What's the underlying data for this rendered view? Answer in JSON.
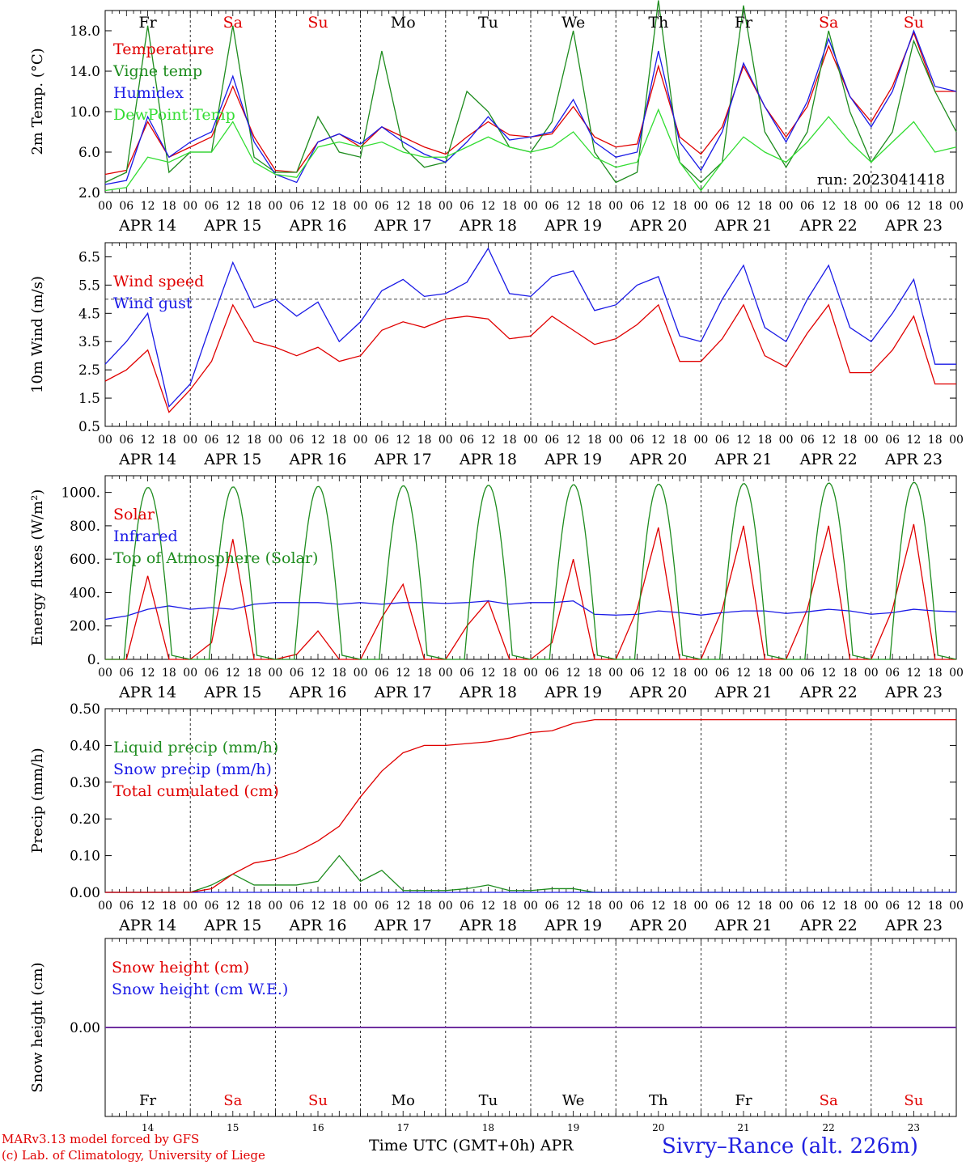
{
  "run_label": "run: 2023041418",
  "hour_ticks": [
    "00",
    "06",
    "12",
    "18"
  ],
  "days": [
    {
      "date": "APR 14",
      "weekday": "Fr",
      "weekend": false,
      "num": "14"
    },
    {
      "date": "APR 15",
      "weekday": "Sa",
      "weekend": true,
      "num": "15"
    },
    {
      "date": "APR 16",
      "weekday": "Su",
      "weekend": true,
      "num": "16"
    },
    {
      "date": "APR 17",
      "weekday": "Mo",
      "weekend": false,
      "num": "17"
    },
    {
      "date": "APR 18",
      "weekday": "Tu",
      "weekend": false,
      "num": "18"
    },
    {
      "date": "APR 19",
      "weekday": "We",
      "weekend": false,
      "num": "19"
    },
    {
      "date": "APR 20",
      "weekday": "Th",
      "weekend": false,
      "num": "20"
    },
    {
      "date": "APR 21",
      "weekday": "Fr",
      "weekend": false,
      "num": "21"
    },
    {
      "date": "APR 22",
      "weekday": "Sa",
      "weekend": true,
      "num": "22"
    },
    {
      "date": "APR 23",
      "weekday": "Su",
      "weekend": true,
      "num": "23"
    }
  ],
  "colors": {
    "red": "#e00000",
    "green": "#1e8c1e",
    "blue": "#1a1ae6",
    "lightgreen": "#33dd33",
    "purple": "#7030a0",
    "weekday": "#000000",
    "weekend": "#e00000"
  },
  "chart_data": [
    {
      "type": "line",
      "ylabel": "2m Temp. (°C)",
      "ylim": [
        2,
        20
      ],
      "yticks": [
        "2.0",
        "6.0",
        "10.0",
        "14.0",
        "18.0"
      ],
      "x_hours": [
        0,
        6,
        12,
        18,
        24,
        30,
        36,
        42,
        48,
        54,
        60,
        66,
        72,
        78,
        84,
        90,
        96,
        102,
        108,
        114,
        120,
        126,
        132,
        138,
        144,
        150,
        156,
        162,
        168,
        174,
        180,
        186,
        192,
        198,
        204,
        210,
        216,
        222,
        228,
        234,
        240
      ],
      "series": [
        {
          "name": "Temperature",
          "color": "#e00000",
          "values": [
            3.8,
            4.2,
            9,
            5.5,
            6.5,
            7.5,
            12.5,
            7.5,
            4.2,
            4.0,
            7.0,
            7.8,
            6.5,
            8.5,
            7.5,
            6.5,
            5.8,
            7.5,
            9.0,
            7.7,
            7.5,
            7.8,
            10.5,
            7.5,
            6.5,
            6.8,
            14.5,
            7.5,
            5.8,
            8.5,
            14.5,
            10.5,
            7.5,
            10.5,
            16.5,
            11.5,
            9.0,
            12.5,
            17.8,
            12.0,
            12.0
          ]
        },
        {
          "name": "Vigne temp",
          "color": "#1e8c1e",
          "values": [
            3.0,
            4.0,
            18.5,
            4.0,
            6.0,
            6.0,
            18.5,
            5.5,
            4.0,
            4.0,
            9.5,
            6.0,
            5.5,
            16.0,
            6.5,
            4.5,
            5.0,
            12.0,
            10.0,
            6.5,
            6.0,
            9.0,
            18.0,
            6.0,
            3.0,
            4.0,
            21.0,
            5.0,
            3.0,
            5.0,
            20.5,
            8.0,
            4.5,
            8.0,
            18.0,
            10.0,
            5.0,
            8.0,
            17.0,
            12.0,
            8.0
          ]
        },
        {
          "name": "Humidex",
          "color": "#1a1ae6",
          "values": [
            2.8,
            3.2,
            9.5,
            5.5,
            7.0,
            8.0,
            13.5,
            7.0,
            3.8,
            3.0,
            7.0,
            7.8,
            6.8,
            8.5,
            7.0,
            5.8,
            5.0,
            7.0,
            9.5,
            7.2,
            7.5,
            8.0,
            11.2,
            7.0,
            5.5,
            6.0,
            16.0,
            7.0,
            4.2,
            8.0,
            14.8,
            10.5,
            7.0,
            11.0,
            17.2,
            11.5,
            8.5,
            12.0,
            18.0,
            12.5,
            12.0
          ]
        },
        {
          "name": "DewPoint Temp",
          "color": "#33dd33",
          "values": [
            2.2,
            2.5,
            5.5,
            5.0,
            6.0,
            6.0,
            9.0,
            5.0,
            3.8,
            3.5,
            6.5,
            7.0,
            6.5,
            7.0,
            6.0,
            5.5,
            5.5,
            6.5,
            7.5,
            6.5,
            6.0,
            6.5,
            8.0,
            5.5,
            4.5,
            5.0,
            10.2,
            5.0,
            2.2,
            5.0,
            7.5,
            6.0,
            5.0,
            7.0,
            9.5,
            7.0,
            5.0,
            7.0,
            9.0,
            6.0,
            6.5
          ]
        }
      ]
    },
    {
      "type": "line",
      "ylabel": "10m Wind (m/s)",
      "ylim": [
        0.5,
        7
      ],
      "yticks": [
        "0.5",
        "1.5",
        "2.5",
        "3.5",
        "4.5",
        "5.5",
        "6.5"
      ],
      "ref_line": 5,
      "x_hours": [
        0,
        6,
        12,
        18,
        24,
        30,
        36,
        42,
        48,
        54,
        60,
        66,
        72,
        78,
        84,
        90,
        96,
        102,
        108,
        114,
        120,
        126,
        132,
        138,
        144,
        150,
        156,
        162,
        168,
        174,
        180,
        186,
        192,
        198,
        204,
        210,
        216,
        222,
        228,
        234,
        240
      ],
      "series": [
        {
          "name": "Wind speed",
          "color": "#e00000",
          "values": [
            2.1,
            2.5,
            3.2,
            1.0,
            1.8,
            2.8,
            4.8,
            3.5,
            3.3,
            3.0,
            3.3,
            2.8,
            3.0,
            3.9,
            4.2,
            4.0,
            4.3,
            4.4,
            4.3,
            3.6,
            3.7,
            4.4,
            3.9,
            3.4,
            3.6,
            4.1,
            4.8,
            2.8,
            2.8,
            3.6,
            4.8,
            3.0,
            2.6,
            3.8,
            4.8,
            2.4,
            2.4,
            3.2,
            4.4,
            2.0,
            2.0
          ]
        },
        {
          "name": "Wind gust",
          "color": "#1a1ae6",
          "values": [
            2.7,
            3.5,
            4.5,
            1.2,
            2.0,
            4.2,
            6.3,
            4.7,
            5.0,
            4.4,
            4.9,
            3.5,
            4.2,
            5.3,
            5.7,
            5.1,
            5.2,
            5.6,
            6.8,
            5.2,
            5.1,
            5.8,
            6.0,
            4.6,
            4.8,
            5.5,
            5.8,
            3.7,
            3.5,
            5.0,
            6.2,
            4.0,
            3.5,
            5.0,
            6.2,
            4.0,
            3.5,
            4.5,
            5.7,
            2.7,
            2.7
          ]
        }
      ]
    },
    {
      "type": "line",
      "ylabel": "Energy fluxes (W/m²)",
      "ylim": [
        0,
        1100
      ],
      "yticks": [
        "0.",
        "200.",
        "400.",
        "600.",
        "800.",
        "1000."
      ],
      "x_hours": [
        0,
        6,
        12,
        18,
        24,
        30,
        36,
        42,
        48,
        54,
        60,
        66,
        72,
        78,
        84,
        90,
        96,
        102,
        108,
        114,
        120,
        126,
        132,
        138,
        144,
        150,
        156,
        162,
        168,
        174,
        180,
        186,
        192,
        198,
        204,
        210,
        216,
        222,
        228,
        234,
        240
      ],
      "series": [
        {
          "name": "Solar",
          "color": "#e00000",
          "values": [
            0,
            0,
            500,
            0,
            0,
            100,
            720,
            0,
            0,
            30,
            170,
            0,
            0,
            250,
            450,
            0,
            0,
            200,
            350,
            0,
            0,
            100,
            600,
            0,
            0,
            300,
            790,
            0,
            0,
            300,
            800,
            0,
            0,
            300,
            800,
            0,
            0,
            300,
            810,
            0,
            0
          ]
        },
        {
          "name": "Infrared",
          "color": "#1a1ae6",
          "values": [
            240,
            260,
            300,
            320,
            300,
            310,
            300,
            330,
            340,
            340,
            340,
            330,
            340,
            330,
            340,
            340,
            335,
            340,
            350,
            330,
            340,
            340,
            350,
            270,
            265,
            270,
            290,
            280,
            265,
            280,
            290,
            290,
            275,
            285,
            300,
            290,
            270,
            280,
            300,
            290,
            285
          ]
        },
        {
          "name": "Top of Atmosphere (Solar)",
          "color": "#1e8c1e",
          "type": "daylight",
          "peak_start": 1030,
          "peak_end": 1060,
          "sunrise": 5.3,
          "sunset": 18.9
        }
      ]
    },
    {
      "type": "line",
      "ylabel": "Precip (mm/h)",
      "ylim": [
        0,
        0.5
      ],
      "yticks": [
        "0.00",
        "0.10",
        "0.20",
        "0.30",
        "0.40",
        "0.50"
      ],
      "x_hours": [
        0,
        6,
        12,
        18,
        24,
        30,
        36,
        42,
        48,
        54,
        60,
        66,
        72,
        78,
        84,
        90,
        96,
        102,
        108,
        114,
        120,
        126,
        132,
        138,
        144,
        150,
        156,
        162,
        168,
        174,
        180,
        186,
        192,
        198,
        204,
        210,
        216,
        222,
        228,
        234,
        240
      ],
      "series": [
        {
          "name": "Liquid precip (mm/h)",
          "color": "#1e8c1e",
          "values": [
            0,
            0,
            0,
            0,
            0,
            0.02,
            0.05,
            0.02,
            0.02,
            0.02,
            0.03,
            0.1,
            0.03,
            0.06,
            0.005,
            0.005,
            0.005,
            0.01,
            0.02,
            0.005,
            0.005,
            0.01,
            0.01,
            0,
            0,
            0,
            0,
            0,
            0,
            0,
            0,
            0,
            0,
            0,
            0,
            0,
            0,
            0,
            0,
            0,
            0
          ]
        },
        {
          "name": "Snow precip (mm/h)",
          "color": "#1a1ae6",
          "values": [
            0,
            0,
            0,
            0,
            0,
            0,
            0,
            0,
            0,
            0,
            0,
            0,
            0,
            0,
            0,
            0,
            0,
            0,
            0,
            0,
            0,
            0,
            0,
            0,
            0,
            0,
            0,
            0,
            0,
            0,
            0,
            0,
            0,
            0,
            0,
            0,
            0,
            0,
            0,
            0,
            0
          ]
        },
        {
          "name": "Total cumulated (cm)",
          "color": "#e00000",
          "values": [
            0,
            0,
            0,
            0,
            0,
            0.01,
            0.05,
            0.08,
            0.09,
            0.11,
            0.14,
            0.18,
            0.26,
            0.33,
            0.38,
            0.4,
            0.4,
            0.405,
            0.41,
            0.42,
            0.435,
            0.44,
            0.46,
            0.47,
            0.47,
            0.47,
            0.47,
            0.47,
            0.47,
            0.47,
            0.47,
            0.47,
            0.47,
            0.47,
            0.47,
            0.47,
            0.47,
            0.47,
            0.47,
            0.47,
            0.47
          ]
        }
      ]
    },
    {
      "type": "line",
      "ylabel": "Snow height (cm)",
      "ylim": [
        -1,
        1
      ],
      "yticks": [
        "0.00"
      ],
      "x_hours": [
        0,
        240
      ],
      "series": [
        {
          "name": "Snow height (cm)",
          "color": "#e00000",
          "values": [
            0,
            0
          ]
        },
        {
          "name": "Snow height (cm W.E.)",
          "color": "#1a1ae6",
          "values": [
            0,
            0
          ]
        }
      ]
    }
  ],
  "footer": {
    "credit_line1": "MARv3.13 model forced by GFS",
    "credit_line2": "(c) Lab. of Climatology, University of Liege",
    "xaxis_title": "Time UTC (GMT+0h) APR",
    "station": "Sivry–Rance (alt. 226m)"
  }
}
